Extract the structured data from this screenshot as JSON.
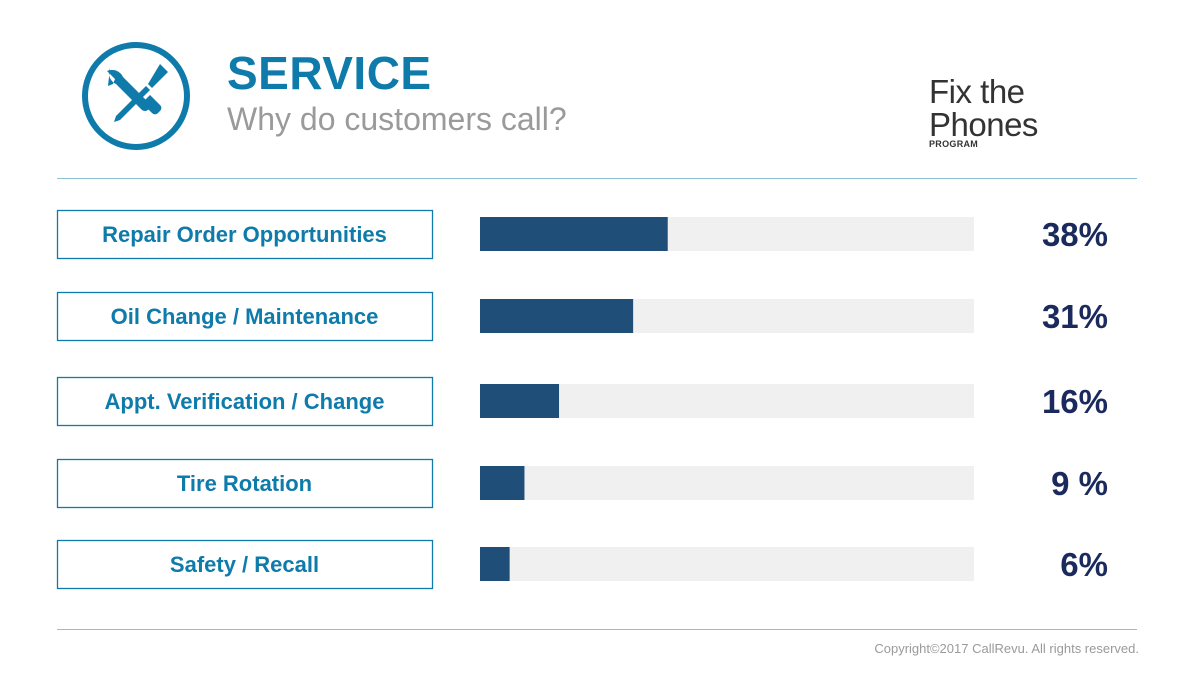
{
  "header": {
    "title": "SERVICE",
    "subtitle": "Why do customers call?",
    "icon": "wrench-screwdriver-icon"
  },
  "brand": {
    "name": "Fix the Phones",
    "sub": "PROGRAM"
  },
  "footer": {
    "copyright": "Copyright©2017 CallRevu. All rights reserved."
  },
  "colors": {
    "accent": "#0e7bab",
    "bar_fill": "#1f4e79",
    "bar_track": "#f0f0f0",
    "value_text": "#1b2a5c"
  },
  "chart_data": {
    "type": "bar",
    "orientation": "horizontal",
    "categories": [
      "Repair Order Opportunities",
      "Oil Change / Maintenance",
      "Appt. Verification / Change",
      "Tire Rotation",
      "Safety / Recall"
    ],
    "values": [
      38,
      31,
      16,
      9,
      6
    ],
    "value_labels": [
      "38%",
      "31%",
      "16%",
      "9 %",
      "6%"
    ],
    "xlim": [
      0,
      100
    ],
    "grid": false,
    "title": "",
    "xlabel": "",
    "ylabel": ""
  }
}
